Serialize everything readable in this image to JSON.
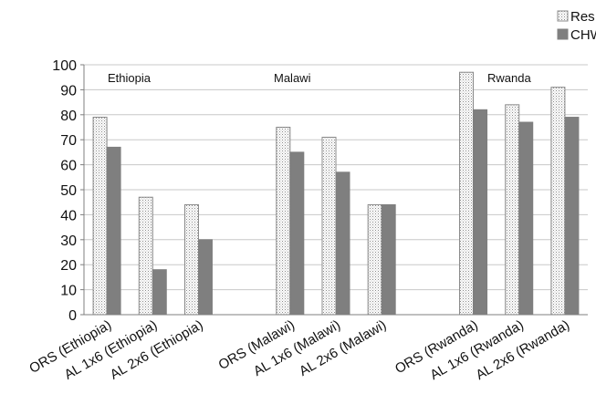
{
  "chart_data": {
    "type": "bar",
    "categories": [
      "ORS (Ethiopia)",
      "AL 1x6 (Ethiopia)",
      "AL 2x6 (Ethiopia)",
      "",
      "ORS (Malawi)",
      "AL 1x6 (Malawi)",
      "AL 2x6 (Malawi)",
      "",
      "ORS (Rwanda)",
      "AL 1x6 (Rwanda)",
      "AL 2x6 (Rwanda)"
    ],
    "series": [
      {
        "name": "Res...",
        "values": [
          79,
          47,
          44,
          null,
          75,
          71,
          44,
          null,
          97,
          84,
          91
        ],
        "pattern": "dotted",
        "color": "#ffffff"
      },
      {
        "name": "CHW",
        "values": [
          67,
          18,
          30,
          null,
          65,
          57,
          44,
          null,
          82,
          77,
          79
        ],
        "color": "#7f7f7f"
      }
    ],
    "group_labels": [
      "Ethiopia",
      "Malawi",
      "Rwanda"
    ],
    "ylim": [
      0,
      100
    ],
    "yticks": [
      0,
      10,
      20,
      30,
      40,
      50,
      60,
      70,
      80,
      90,
      100
    ],
    "grid": true,
    "legend": "top-right",
    "title": "",
    "xlabel": "",
    "ylabel": ""
  }
}
